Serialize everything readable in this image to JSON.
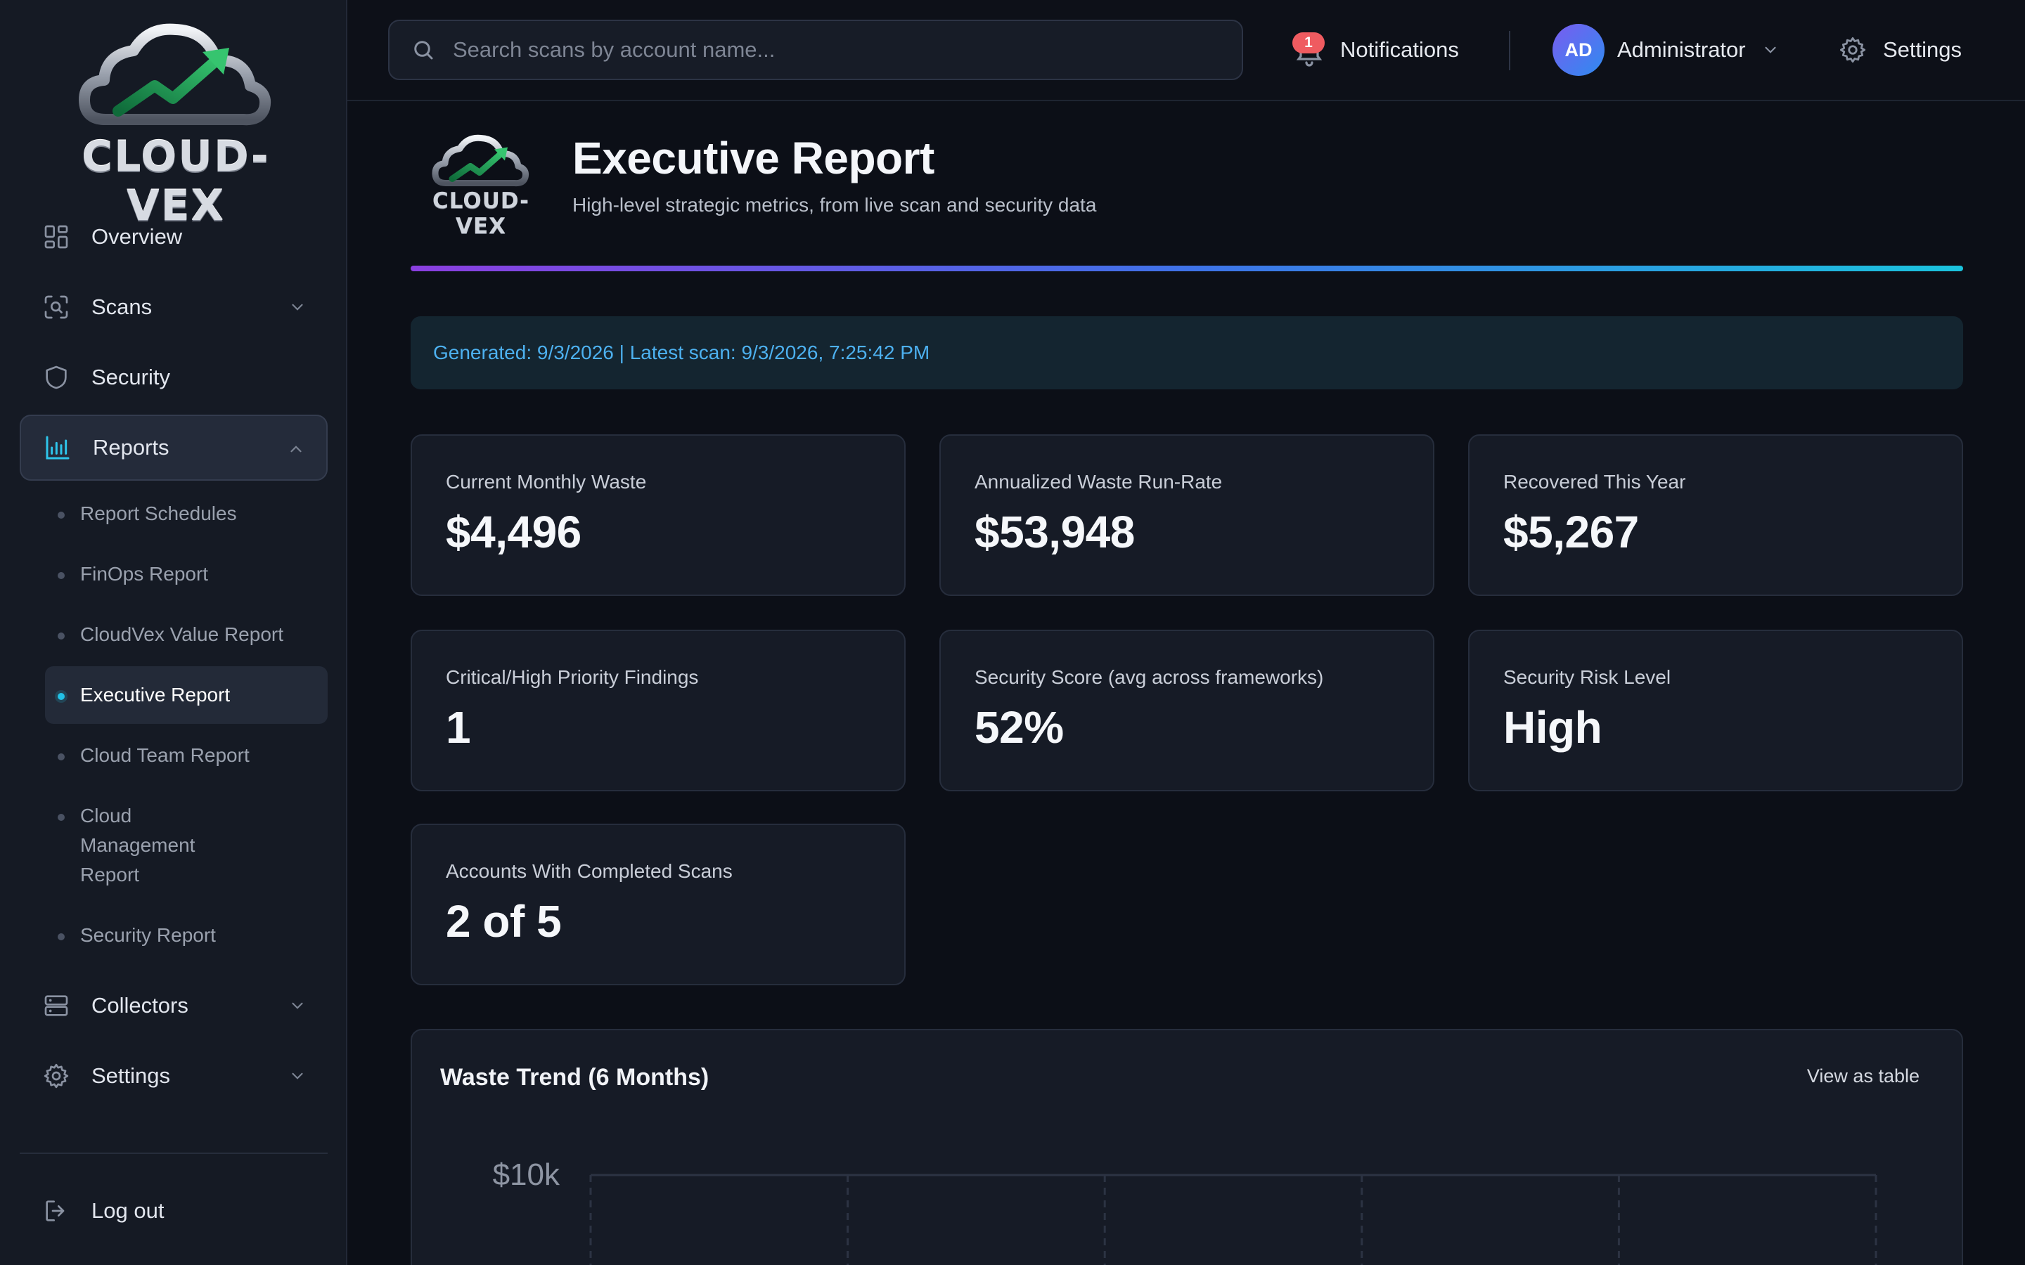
{
  "brand": {
    "name": "CLOUD-VEX"
  },
  "sidebar": {
    "items": [
      {
        "label": "Overview",
        "icon": "grid-icon"
      },
      {
        "label": "Scans",
        "icon": "scan-icon"
      },
      {
        "label": "Security",
        "icon": "shield-icon"
      },
      {
        "label": "Reports",
        "icon": "bar-chart-icon"
      },
      {
        "label": "Collectors",
        "icon": "server-icon"
      },
      {
        "label": "Settings",
        "icon": "gear-icon"
      }
    ],
    "report_subitems": [
      "Report Schedules",
      "FinOps Report",
      "CloudVex Value Report",
      "Executive Report",
      "Cloud Team Report",
      "Cloud Management Report",
      "Security Report"
    ],
    "active_subitem": "Executive Report",
    "logout_label": "Log out"
  },
  "topbar": {
    "search_placeholder": "Search scans by account name...",
    "notifications_label": "Notifications",
    "notifications_count": "1",
    "user_initials": "AD",
    "user_name": "Administrator",
    "settings_label": "Settings"
  },
  "page": {
    "title": "Executive Report",
    "subtitle": "High-level strategic metrics, from live scan and security data",
    "generated": "Generated: 9/3/2026 | Latest scan: 9/3/2026, 7:25:42 PM"
  },
  "metrics": [
    {
      "label": "Current Monthly Waste",
      "value": "$4,496"
    },
    {
      "label": "Annualized Waste Run-Rate",
      "value": "$53,948"
    },
    {
      "label": "Recovered This Year",
      "value": "$5,267"
    },
    {
      "label": "Critical/High Priority Findings",
      "value": "1"
    },
    {
      "label": "Security Score (avg across frameworks)",
      "value": "52%"
    },
    {
      "label": "Security Risk Level",
      "value": "High"
    },
    {
      "label": "Accounts With Completed Scans",
      "value": "2 of 5"
    }
  ],
  "chart": {
    "title": "Waste Trend (6 Months)",
    "view_table_label": "View as table"
  },
  "chart_data": {
    "type": "line",
    "title": "Waste Trend (6 Months)",
    "y_ticks_visible": [
      "$10k"
    ],
    "ylim_top": 10000,
    "grid": true
  },
  "colors": {
    "accent_gradient_start": "#8b3fe0",
    "accent_gradient_end": "#1bc3dd",
    "active_dot": "#22c1e6",
    "notif_badge": "#ef5b60",
    "banner_text": "#4db1f0"
  }
}
